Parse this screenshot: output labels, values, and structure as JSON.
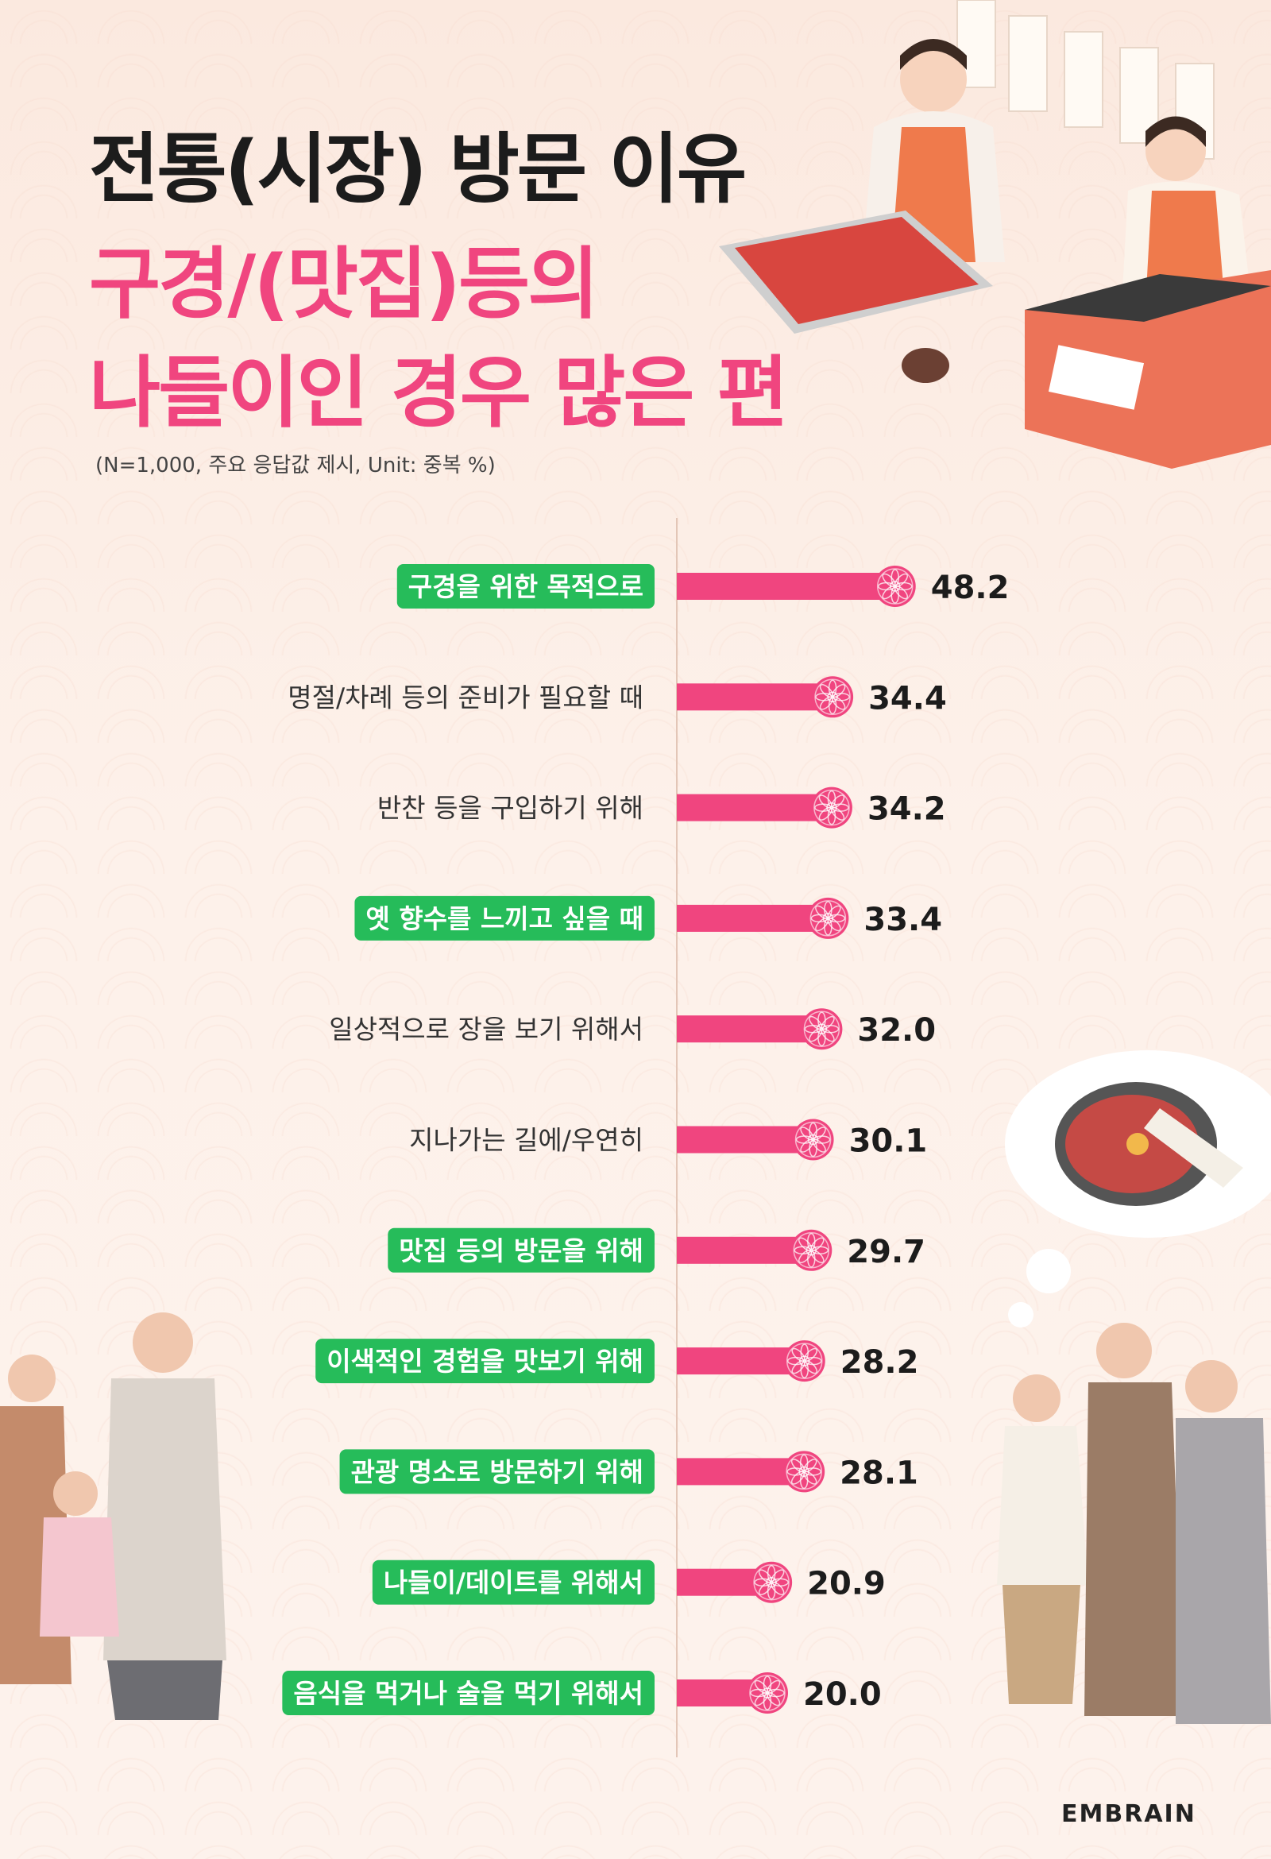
{
  "header": {
    "title_line1": "전통(시장) 방문 이유",
    "title_line2": "구경/(맛집)등의",
    "title_line3": "나들이인 경우 많은 편",
    "note": "(N=1,000, 주요 응답값 제시, Unit: 중복 %)"
  },
  "brand": "EMBRAIN",
  "colors": {
    "bar": "#f0457f",
    "highlight_label_bg": "#26bc5a",
    "title_accent": "#f0457f"
  },
  "chart_data": {
    "type": "bar",
    "orientation": "horizontal",
    "categories": [
      "구경을 위한 목적으로",
      "명절/차례 등의 준비가 필요할 때",
      "반찬 등을 구입하기 위해",
      "옛 향수를 느끼고 싶을 때",
      "일상적으로 장을 보기 위해서",
      "지나가는 길에/우연히",
      "맛집 등의 방문을 위해",
      "이색적인 경험을 맛보기 위해",
      "관광 명소로 방문하기 위해",
      "나들이/데이트를 위해서",
      "음식을 먹거나 술을 먹기 위해서"
    ],
    "values": [
      48.2,
      34.4,
      34.2,
      33.4,
      32.0,
      30.1,
      29.7,
      28.2,
      28.1,
      20.9,
      20.0
    ],
    "value_labels": [
      "48.2",
      "34.4",
      "34.2",
      "33.4",
      "32.0",
      "30.1",
      "29.7",
      "28.2",
      "28.1",
      "20.9",
      "20.0"
    ],
    "highlighted": [
      true,
      false,
      false,
      true,
      false,
      false,
      true,
      true,
      true,
      true,
      true
    ],
    "xlim": [
      0,
      100
    ],
    "grid": false,
    "legend": "none"
  }
}
